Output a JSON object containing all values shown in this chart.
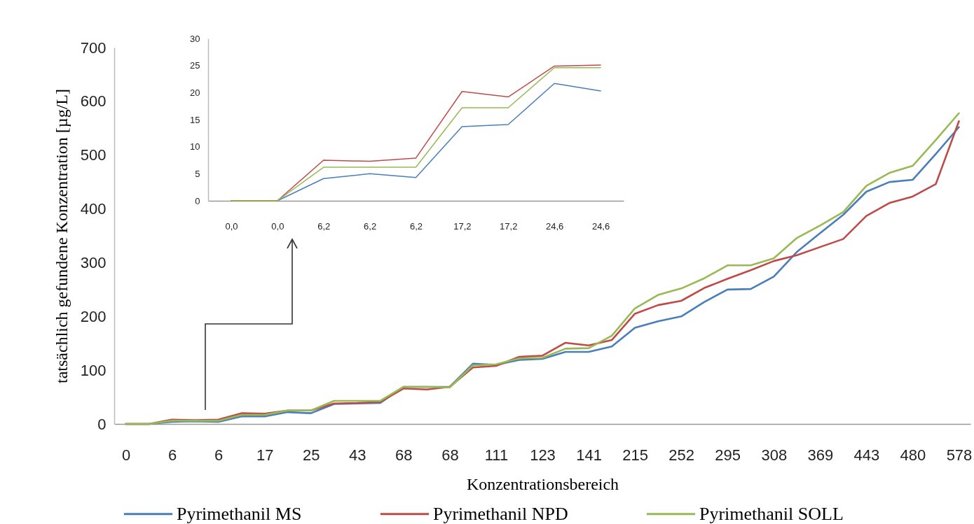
{
  "chart_data": [
    {
      "type": "line",
      "xlabel": "Konzentrationsbereich",
      "ylabel": "tatsächlich gefundene Konzentration [µg/L]",
      "categories": [
        "0",
        null,
        "6",
        null,
        "6",
        null,
        "17",
        null,
        "25",
        null,
        "43",
        null,
        "68",
        null,
        "68",
        null,
        "111",
        null,
        "123",
        null,
        "141",
        null,
        "215",
        null,
        "252",
        null,
        "295",
        null,
        "308",
        null,
        "369",
        null,
        "443",
        null,
        "480",
        null,
        "578"
      ],
      "series": [
        {
          "name": "Pyrimethanil MS",
          "color": "#4a7ebb",
          "values": [
            0,
            0,
            4,
            5,
            4,
            14,
            14,
            22,
            20,
            37,
            38,
            39,
            69,
            69,
            69,
            112,
            110,
            119,
            121,
            134,
            134,
            144,
            179,
            191,
            200,
            227,
            250,
            251,
            274,
            320,
            355,
            389,
            432,
            450,
            454,
            502,
            552
          ]
        },
        {
          "name": "Pyrimethanil NPD",
          "color": "#be4b48",
          "values": [
            0,
            0,
            8,
            7,
            8,
            20,
            19,
            25,
            25,
            38,
            39,
            41,
            66,
            64,
            69,
            105,
            108,
            125,
            127,
            151,
            146,
            156,
            205,
            221,
            229,
            253,
            270,
            286,
            303,
            314,
            329,
            344,
            387,
            411,
            423,
            446,
            563
          ]
        },
        {
          "name": "Pyrimethanil SOLL",
          "color": "#98b954",
          "values": [
            0,
            0,
            6,
            6,
            6,
            17,
            17,
            25,
            25,
            43,
            43,
            43,
            69,
            69,
            68,
            109,
            111,
            122,
            123,
            140,
            141,
            164,
            215,
            240,
            252,
            271,
            295,
            295,
            308,
            346,
            369,
            394,
            443,
            467,
            480,
            528,
            578
          ]
        }
      ],
      "ylim": [
        0,
        700
      ],
      "yticks": [
        0,
        100,
        200,
        300,
        400,
        500,
        600,
        700
      ],
      "legend": "bottom",
      "grid": false
    },
    {
      "type": "line",
      "categories": [
        "0,0",
        "0,0",
        "6,2",
        "6,2",
        "6,2",
        "17,2",
        "17,2",
        "24,6",
        "24,6"
      ],
      "series": [
        {
          "color": "#4a7ebb",
          "values": [
            0,
            0,
            4.1,
            5.0,
            4.3,
            13.7,
            14.1,
            21.7,
            20.3
          ]
        },
        {
          "color": "#be4b48",
          "values": [
            0,
            0,
            7.5,
            7.3,
            7.9,
            20.2,
            19.2,
            24.9,
            25.1
          ]
        },
        {
          "color": "#98b954",
          "values": [
            0,
            0,
            6.2,
            6.2,
            6.2,
            17.2,
            17.2,
            24.6,
            24.6
          ]
        }
      ],
      "ylim": [
        0,
        30
      ],
      "yticks": [
        0,
        5,
        10,
        15,
        20,
        25,
        30
      ],
      "grid": false
    }
  ]
}
